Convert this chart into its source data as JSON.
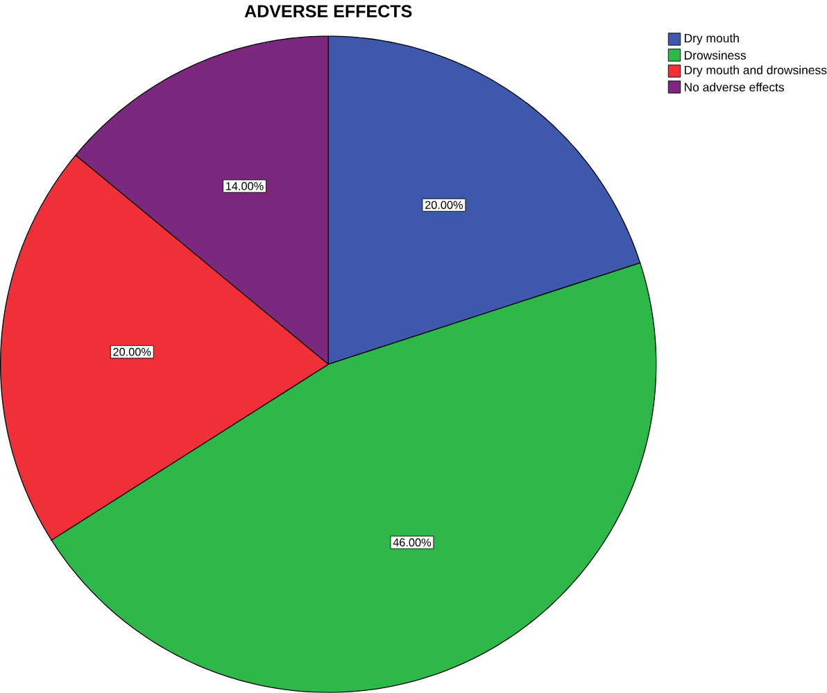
{
  "chart_data": {
    "type": "pie",
    "title": "ADVERSE EFFECTS",
    "categories": [
      "Dry mouth",
      "Drowsiness",
      "Dry mouth and drowsiness",
      "No adverse effects"
    ],
    "values": [
      20,
      46,
      20,
      14
    ],
    "colors": [
      "#3e58ac",
      "#2eb84a",
      "#ef3038",
      "#7b287e"
    ],
    "value_labels": [
      "20.00%",
      "46.00%",
      "20.00%",
      "14.00%"
    ],
    "legend": "top right"
  }
}
